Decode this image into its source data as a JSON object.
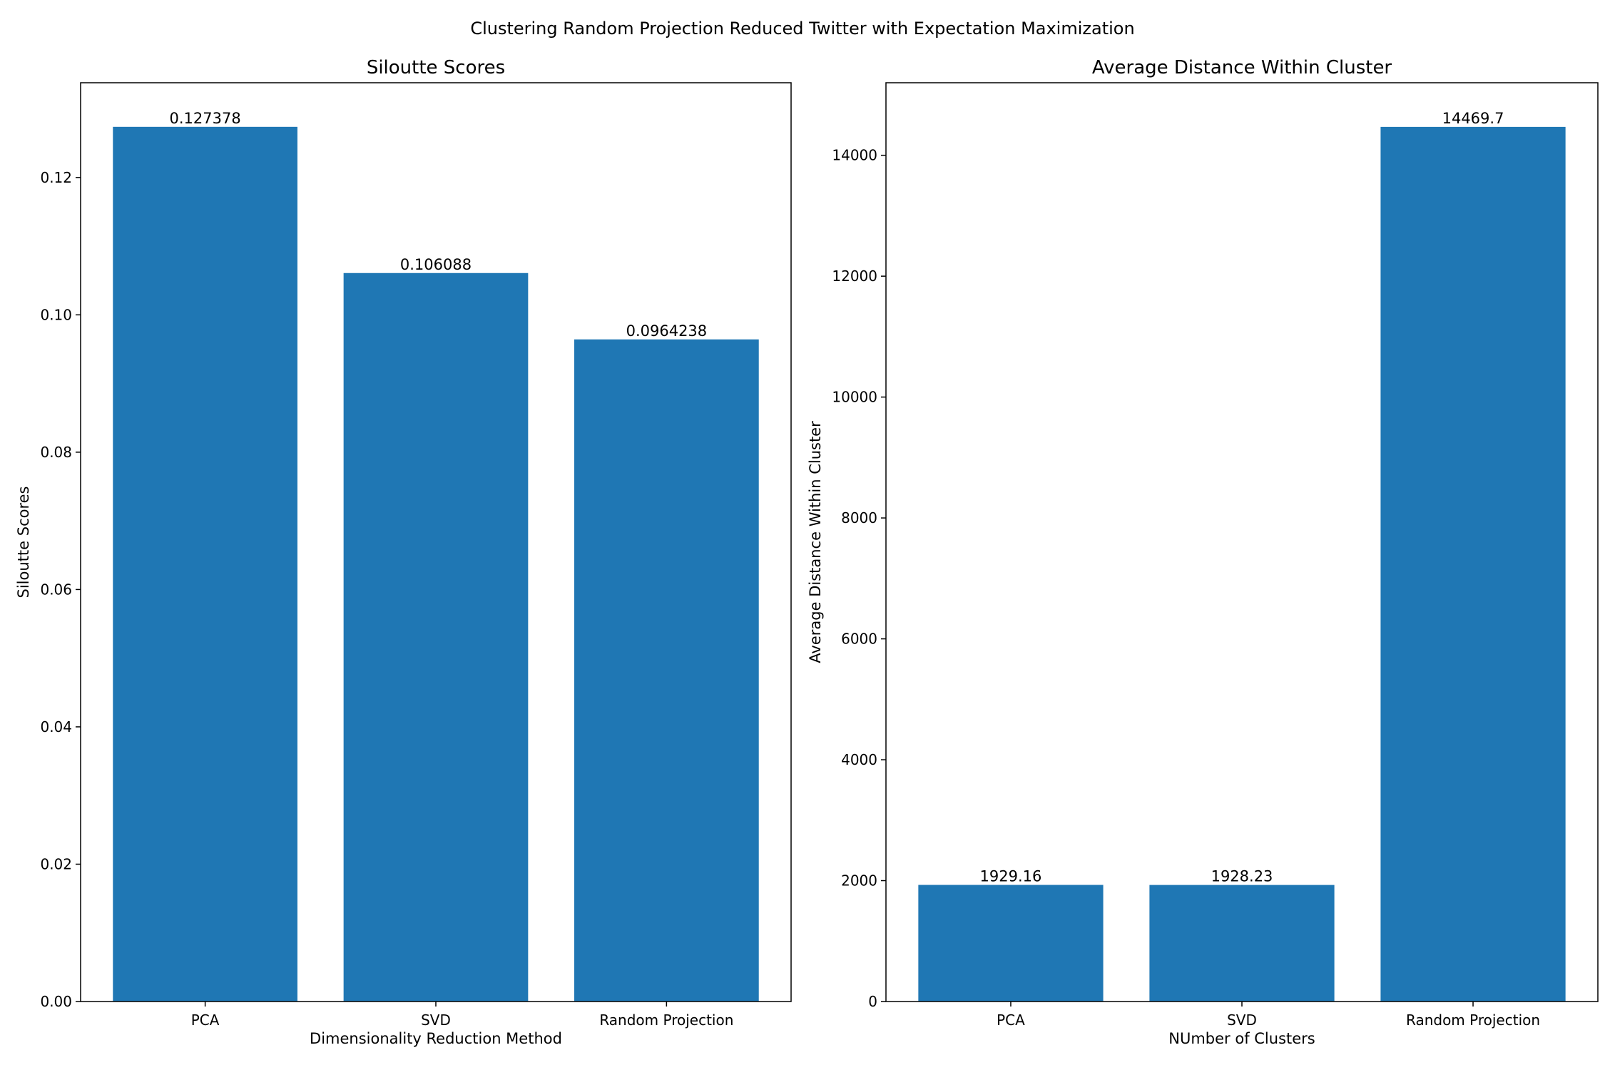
{
  "figure": {
    "suptitle": "Clustering Random Projection Reduced Twitter with Expectation Maximization"
  },
  "chart_data": [
    {
      "type": "bar",
      "title": "Siloutte Scores",
      "xlabel": "Dimensionality Reduction Method",
      "ylabel": "Siloutte Scores",
      "categories": [
        "PCA",
        "SVD",
        "Random Projection"
      ],
      "values": [
        0.127378,
        0.106088,
        0.0964238
      ],
      "value_labels": [
        "0.127378",
        "0.106088",
        "0.0964238"
      ],
      "ylim": [
        0,
        0.1338
      ],
      "yticks": [
        0,
        0.02,
        0.04,
        0.06,
        0.08,
        0.1,
        0.12
      ],
      "ytick_labels": [
        "0.00",
        "0.02",
        "0.04",
        "0.06",
        "0.08",
        "0.10",
        "0.12"
      ],
      "bar_color": "#1f77b4",
      "grid": false
    },
    {
      "type": "bar",
      "title": "Average Distance Within Cluster",
      "xlabel": "NUmber of Clusters",
      "ylabel": "Average Distance Within Cluster",
      "categories": [
        "PCA",
        "SVD",
        "Random Projection"
      ],
      "values": [
        1929.16,
        1928.23,
        14469.7
      ],
      "value_labels": [
        "1929.16",
        "1928.23",
        "14469.7"
      ],
      "ylim": [
        0,
        15200
      ],
      "yticks": [
        0,
        2000,
        4000,
        6000,
        8000,
        10000,
        12000,
        14000
      ],
      "ytick_labels": [
        "0",
        "2000",
        "4000",
        "6000",
        "8000",
        "10000",
        "12000",
        "14000"
      ],
      "bar_color": "#1f77b4",
      "grid": false
    }
  ]
}
